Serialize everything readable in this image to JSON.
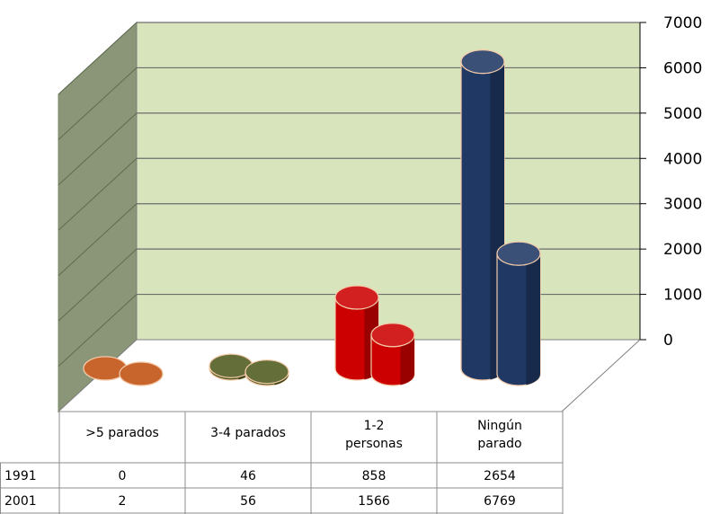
{
  "chart_data": {
    "type": "bar",
    "categories": [
      [
        ">5 parados"
      ],
      [
        "3-4 parados"
      ],
      [
        "1-2",
        "personas"
      ],
      [
        "Ningún",
        "parado"
      ]
    ],
    "series": [
      {
        "name": "1991",
        "values": [
          0,
          46,
          858,
          2654
        ]
      },
      {
        "name": "2001",
        "values": [
          2,
          56,
          1566,
          6769
        ]
      }
    ],
    "series_order_back_to_front": [
      "2001",
      "1991"
    ],
    "ylim": [
      0,
      7000
    ],
    "yticks": [
      "0",
      "1000",
      "2000",
      "3000",
      "4000",
      "5000",
      "6000",
      "7000"
    ],
    "table": {
      "rows": [
        {
          "label": "1991",
          "values": [
            "0",
            "46",
            "858",
            "2654"
          ]
        },
        {
          "label": "2001",
          "values": [
            "2",
            "56",
            "1566",
            "6769"
          ]
        }
      ]
    },
    "colors": {
      "category": [
        "#c0500f",
        "#4f5a1e",
        "#cc0000",
        "#1f3864"
      ],
      "back_wall": "#d8e4bc",
      "side_wall": "#8a9677",
      "floor": "#ffffff",
      "bar_outline": "#f2c9a8"
    },
    "grid": true,
    "view": "3d-cylinder"
  }
}
